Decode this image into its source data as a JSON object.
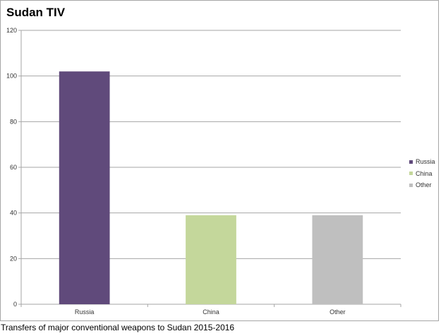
{
  "colors": {
    "Russia": "#604a7b",
    "China": "#c4d79b",
    "Other": "#bfbfbf",
    "grid": "#a6a6a6"
  },
  "chart_data": {
    "type": "bar",
    "title": "Sudan TIV",
    "categories": [
      "Russia",
      "China",
      "Other"
    ],
    "values": [
      102,
      39,
      39
    ],
    "ylim": [
      0,
      120
    ],
    "yticks": [
      0,
      20,
      40,
      60,
      80,
      100,
      120
    ],
    "xlabel": "",
    "ylabel": "",
    "grid": true,
    "legend": {
      "placement": "right",
      "entries": [
        "Russia",
        "China",
        "Other"
      ]
    }
  },
  "caption": "Transfers of major conventional weapons to Sudan 2015-2016"
}
